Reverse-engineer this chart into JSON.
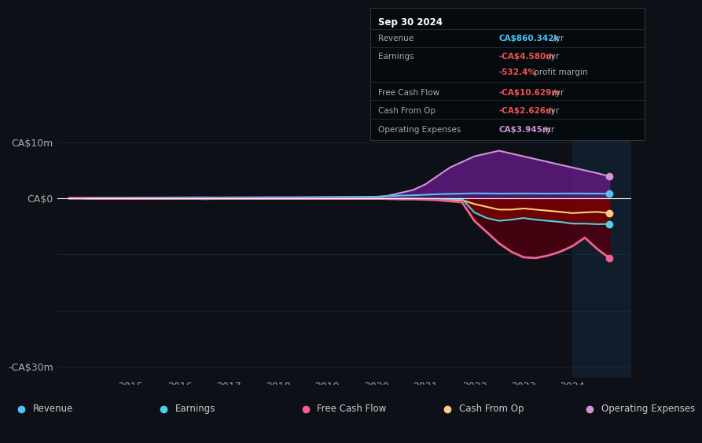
{
  "bg_color": "#0d1117",
  "title_box": {
    "date": "Sep 30 2024",
    "rows": [
      {
        "label": "Revenue",
        "value": "CA$860.342k",
        "value_color": "#4fc3f7",
        "suffix": " /yr"
      },
      {
        "label": "Earnings",
        "value": "-CA$4.580m",
        "value_color": "#ef5350",
        "suffix": " /yr"
      },
      {
        "label": "",
        "value": "-532.4%",
        "value_color": "#ef5350",
        "suffix": " profit margin"
      },
      {
        "label": "Free Cash Flow",
        "value": "-CA$10.629m",
        "value_color": "#ef5350",
        "suffix": " /yr"
      },
      {
        "label": "Cash From Op",
        "value": "-CA$2.626m",
        "value_color": "#ef5350",
        "suffix": " /yr"
      },
      {
        "label": "Operating Expenses",
        "value": "CA$3.945m",
        "value_color": "#ce93d8",
        "suffix": " /yr"
      }
    ]
  },
  "yticks": [
    "CA$10m",
    "CA$0",
    "-CA$30m"
  ],
  "ytick_values": [
    10,
    0,
    -30
  ],
  "ylim": [
    -32,
    12
  ],
  "xlim": [
    2013.5,
    2025.2
  ],
  "xticks": [
    2015,
    2016,
    2017,
    2018,
    2019,
    2020,
    2021,
    2022,
    2023,
    2024
  ],
  "legend": [
    {
      "label": "Revenue",
      "color": "#4fc3f7"
    },
    {
      "label": "Earnings",
      "color": "#4dd0e1"
    },
    {
      "label": "Free Cash Flow",
      "color": "#f06292"
    },
    {
      "label": "Cash From Op",
      "color": "#ffcc80"
    },
    {
      "label": "Operating Expenses",
      "color": "#ce93d8"
    }
  ],
  "series": {
    "x": [
      2013.75,
      2014.0,
      2014.25,
      2014.5,
      2014.75,
      2015.0,
      2015.25,
      2015.5,
      2015.75,
      2016.0,
      2016.25,
      2016.5,
      2016.75,
      2017.0,
      2017.25,
      2017.5,
      2017.75,
      2018.0,
      2018.25,
      2018.5,
      2018.75,
      2019.0,
      2019.25,
      2019.5,
      2019.75,
      2020.0,
      2020.25,
      2020.5,
      2020.75,
      2021.0,
      2021.25,
      2021.5,
      2021.75,
      2022.0,
      2022.25,
      2022.5,
      2022.75,
      2023.0,
      2023.25,
      2023.5,
      2023.75,
      2024.0,
      2024.25,
      2024.5,
      2024.75
    ],
    "revenue": [
      0.1,
      0.1,
      0.12,
      0.12,
      0.11,
      0.13,
      0.14,
      0.15,
      0.16,
      0.17,
      0.18,
      0.18,
      0.17,
      0.18,
      0.19,
      0.2,
      0.21,
      0.22,
      0.22,
      0.23,
      0.24,
      0.25,
      0.26,
      0.27,
      0.28,
      0.3,
      0.4,
      0.5,
      0.55,
      0.65,
      0.75,
      0.8,
      0.85,
      0.9,
      0.88,
      0.86,
      0.87,
      0.88,
      0.87,
      0.86,
      0.87,
      0.87,
      0.87,
      0.86,
      0.86
    ],
    "earnings": [
      0.0,
      0.0,
      -0.05,
      -0.05,
      -0.05,
      -0.05,
      -0.05,
      -0.05,
      -0.1,
      -0.1,
      -0.05,
      -0.15,
      -0.1,
      -0.05,
      -0.05,
      -0.05,
      -0.05,
      -0.05,
      -0.05,
      -0.05,
      -0.05,
      -0.05,
      -0.05,
      -0.05,
      -0.05,
      -0.05,
      -0.05,
      -0.05,
      -0.05,
      -0.1,
      -0.1,
      -0.1,
      -0.1,
      -2.5,
      -3.5,
      -4.0,
      -3.8,
      -3.5,
      -3.8,
      -4.0,
      -4.2,
      -4.5,
      -4.5,
      -4.6,
      -4.58
    ],
    "free_cash_flow": [
      0.0,
      0.0,
      -0.05,
      -0.05,
      -0.05,
      -0.05,
      -0.05,
      -0.05,
      -0.05,
      -0.05,
      -0.05,
      -0.05,
      -0.05,
      -0.05,
      -0.05,
      -0.05,
      -0.05,
      -0.05,
      -0.05,
      -0.05,
      -0.05,
      -0.05,
      -0.05,
      -0.05,
      -0.05,
      -0.05,
      -0.1,
      -0.15,
      -0.15,
      -0.2,
      -0.3,
      -0.5,
      -0.7,
      -4.0,
      -6.0,
      -8.0,
      -9.5,
      -10.5,
      -10.629,
      -10.2,
      -9.5,
      -8.5,
      -7.0,
      -9.0,
      -10.629
    ],
    "cash_from_op": [
      0.0,
      0.0,
      -0.05,
      -0.05,
      -0.05,
      -0.05,
      -0.05,
      -0.05,
      -0.05,
      -0.05,
      -0.05,
      -0.05,
      -0.05,
      -0.05,
      -0.05,
      -0.05,
      -0.05,
      -0.05,
      -0.05,
      -0.05,
      -0.05,
      -0.05,
      -0.05,
      -0.05,
      -0.05,
      -0.05,
      -0.05,
      -0.05,
      -0.05,
      -0.1,
      -0.1,
      -0.2,
      -0.3,
      -1.0,
      -1.5,
      -2.0,
      -2.0,
      -1.8,
      -2.0,
      -2.2,
      -2.4,
      -2.626,
      -2.5,
      -2.4,
      -2.626
    ],
    "op_expenses": [
      0.05,
      0.05,
      0.1,
      0.1,
      0.1,
      0.1,
      0.1,
      0.1,
      0.1,
      0.1,
      0.1,
      0.1,
      0.1,
      0.1,
      0.1,
      0.1,
      0.1,
      0.1,
      0.1,
      0.1,
      0.1,
      0.1,
      0.1,
      0.1,
      0.1,
      0.2,
      0.5,
      1.0,
      1.5,
      2.5,
      4.0,
      5.5,
      6.5,
      7.5,
      8.0,
      8.5,
      8.0,
      7.5,
      7.0,
      6.5,
      6.0,
      5.5,
      5.0,
      4.5,
      3.945
    ]
  },
  "colors": {
    "revenue_line": "#4fc3f7",
    "earnings_line": "#4dd0e1",
    "fcf_line": "#f06292",
    "cashop_line": "#ffcc80",
    "opex_line": "#ce93d8",
    "grid_color": "#1e2d3d",
    "zero_line_color": "#ffffff",
    "text_color": "#aaaaaa",
    "label_color": "#cccccc"
  }
}
